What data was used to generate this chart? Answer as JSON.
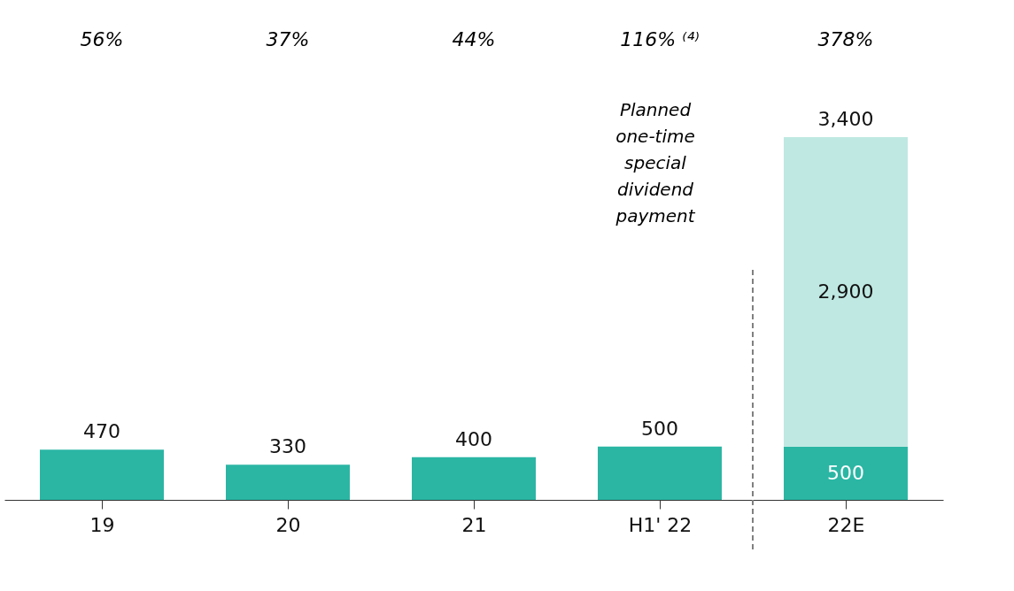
{
  "chart_data": {
    "type": "bar",
    "stacked": true,
    "categories": [
      "19",
      "20",
      "21",
      "H1' 22",
      "22E"
    ],
    "series": [
      {
        "color": "#2bb6a4",
        "values": [
          470,
          330,
          400,
          500,
          500
        ],
        "value_labels": [
          "470",
          "330",
          "400",
          "500",
          "500"
        ]
      },
      {
        "color": "#bfe8e2",
        "values": [
          null,
          null,
          null,
          null,
          2900
        ],
        "value_labels": [
          null,
          null,
          null,
          null,
          "2,900"
        ]
      }
    ],
    "totals": [
      null,
      null,
      null,
      null,
      "3,400"
    ],
    "annotations": [
      "56%",
      "37%",
      "44%",
      "116% ⁽⁴⁾",
      "378%",
      "Planned one-time special dividend payment"
    ],
    "grid": false
  }
}
